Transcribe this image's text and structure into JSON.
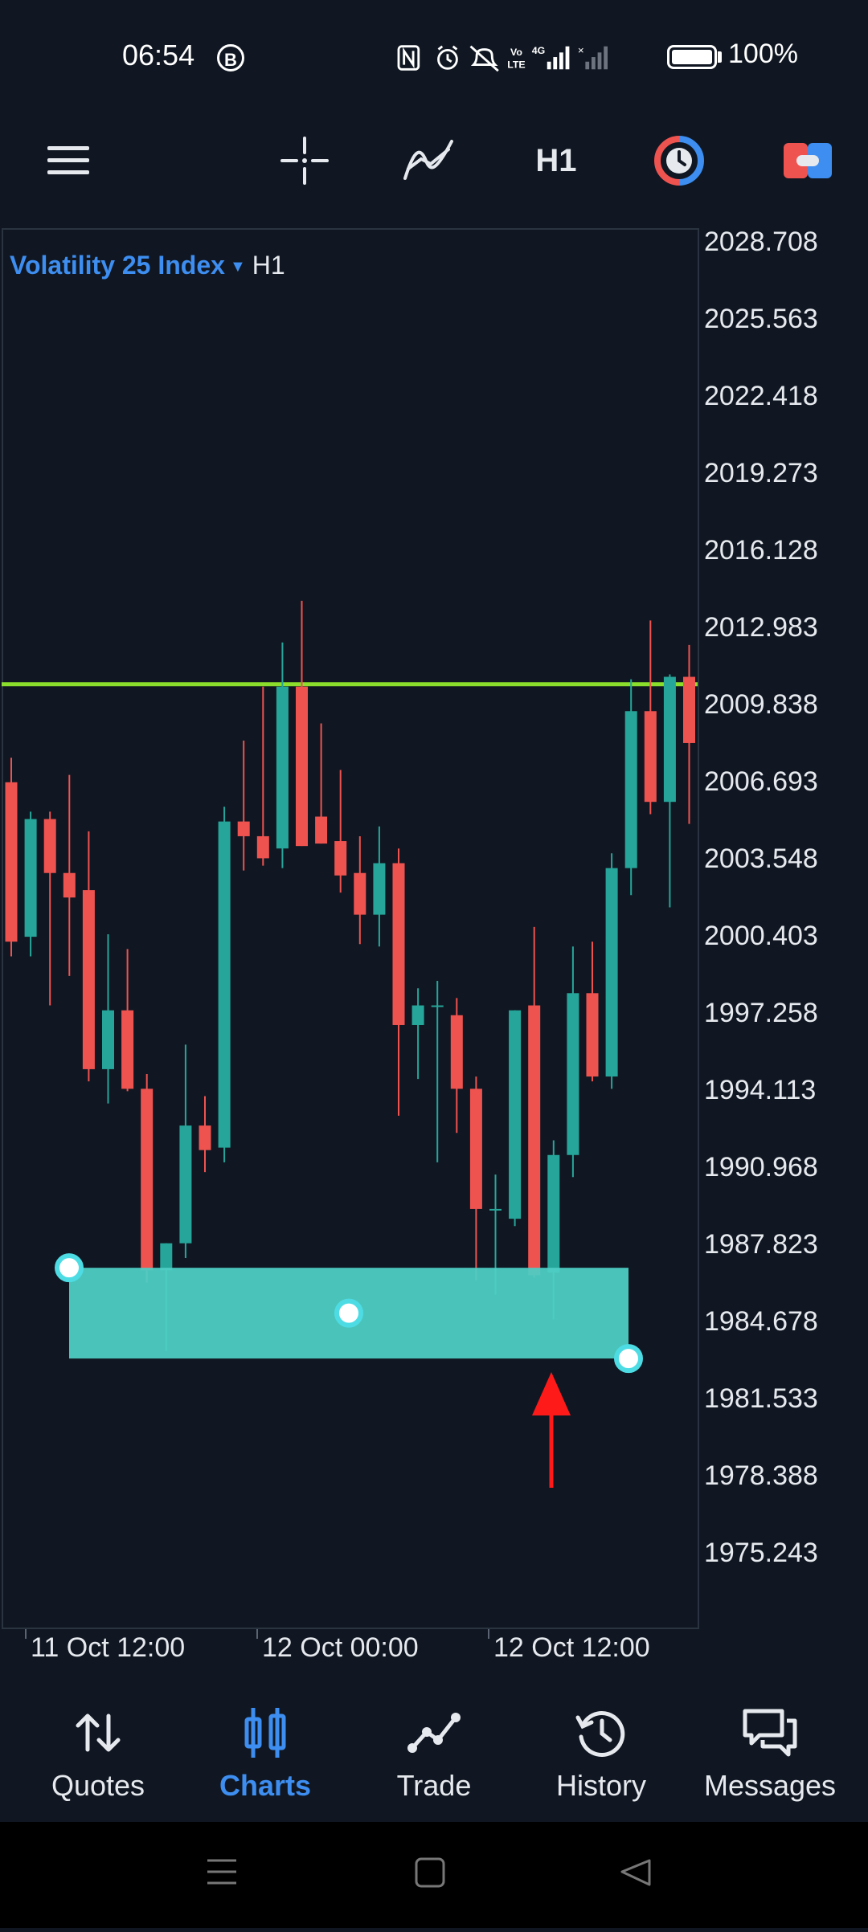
{
  "status_bar": {
    "time": "06:54",
    "b_icon": "B",
    "battery_pct": "100%",
    "icons": [
      "nfc-icon",
      "alarm-icon",
      "mute-icon",
      "volte-icon",
      "4g-signal-icon",
      "signal-icon",
      "battery-icon"
    ]
  },
  "toolbar": {
    "timeframe": "H1",
    "icons": [
      "menu-icon",
      "crosshair-icon",
      "indicators-icon",
      "timeframe-button",
      "one-click-trade-icon",
      "trade-panel-icon"
    ]
  },
  "chart": {
    "symbol": "Volatility 25 Index",
    "timeframe": "H1",
    "price_labels": [
      "2028.708",
      "2025.563",
      "2022.418",
      "2019.273",
      "2016.128",
      "2012.983",
      "2009.838",
      "2006.693",
      "2003.548",
      "2000.403",
      "1997.258",
      "1994.113",
      "1990.968",
      "1987.823",
      "1984.678",
      "1981.533",
      "1978.388",
      "1975.243"
    ],
    "time_labels": [
      "11 Oct 12:00",
      "12 Oct 00:00",
      "12 Oct 12:00"
    ],
    "colors": {
      "bull": "#26a69a",
      "bear": "#ef5350",
      "level_line": "#8bde2b",
      "zone": "#4ecdc4",
      "arrow": "#ff1a1a",
      "bg": "#101722",
      "accent": "#3d8ef0"
    }
  },
  "chart_data": {
    "type": "candlestick",
    "symbol": "Volatility 25 Index",
    "timeframe": "H1",
    "horizontal_line": 2010.7,
    "zone": {
      "top": 1986.9,
      "bottom": 1983.2
    },
    "candles": [
      {
        "o": 2006.7,
        "h": 2007.7,
        "l": 1999.6,
        "c": 2000.2
      },
      {
        "o": 2000.4,
        "h": 2005.5,
        "l": 1999.6,
        "c": 2005.2
      },
      {
        "o": 2005.2,
        "h": 2005.5,
        "l": 1997.6,
        "c": 2003.0
      },
      {
        "o": 2003.0,
        "h": 2007.0,
        "l": 1998.8,
        "c": 2002.0
      },
      {
        "o": 2002.3,
        "h": 2004.7,
        "l": 1994.5,
        "c": 1995.0
      },
      {
        "o": 1995.0,
        "h": 2000.5,
        "l": 1993.6,
        "c": 1997.4
      },
      {
        "o": 1997.4,
        "h": 1999.9,
        "l": 1994.1,
        "c": 1994.2
      },
      {
        "o": 1994.2,
        "h": 1994.8,
        "l": 1986.3,
        "c": 1986.8
      },
      {
        "o": 1986.8,
        "h": 1987.9,
        "l": 1983.5,
        "c": 1987.9
      },
      {
        "o": 1987.9,
        "h": 1996.0,
        "l": 1987.3,
        "c": 1992.7
      },
      {
        "o": 1992.7,
        "h": 1993.9,
        "l": 1990.8,
        "c": 1991.7
      },
      {
        "o": 1991.8,
        "h": 2005.7,
        "l": 1991.2,
        "c": 2005.1
      },
      {
        "o": 2005.1,
        "h": 2008.4,
        "l": 2003.1,
        "c": 2004.5
      },
      {
        "o": 2004.5,
        "h": 2010.6,
        "l": 2003.3,
        "c": 2003.6
      },
      {
        "o": 2004.0,
        "h": 2012.4,
        "l": 2003.2,
        "c": 2010.6
      },
      {
        "o": 2010.6,
        "h": 2014.1,
        "l": 2004.1,
        "c": 2004.1
      },
      {
        "o": 2005.3,
        "h": 2009.1,
        "l": 2004.2,
        "c": 2004.2
      },
      {
        "o": 2004.3,
        "h": 2007.2,
        "l": 2002.2,
        "c": 2002.9
      },
      {
        "o": 2003.0,
        "h": 2004.5,
        "l": 2000.1,
        "c": 2001.3
      },
      {
        "o": 2001.3,
        "h": 2004.9,
        "l": 2000.0,
        "c": 2003.4
      },
      {
        "o": 2003.4,
        "h": 2004.0,
        "l": 1993.1,
        "c": 1996.8
      },
      {
        "o": 1996.8,
        "h": 1998.3,
        "l": 1994.6,
        "c": 1997.6
      },
      {
        "o": 1997.6,
        "h": 1998.6,
        "l": 1991.2,
        "c": 1997.6
      },
      {
        "o": 1997.2,
        "h": 1997.9,
        "l": 1992.4,
        "c": 1994.2
      },
      {
        "o": 1994.2,
        "h": 1994.7,
        "l": 1986.4,
        "c": 1989.3
      },
      {
        "o": 1989.3,
        "h": 1990.7,
        "l": 1985.8,
        "c": 1989.3
      },
      {
        "o": 1988.9,
        "h": 1997.4,
        "l": 1988.6,
        "c": 1997.4
      },
      {
        "o": 1997.6,
        "h": 2000.8,
        "l": 1986.5,
        "c": 1986.6
      },
      {
        "o": 1986.7,
        "h": 1992.1,
        "l": 1984.8,
        "c": 1991.5
      },
      {
        "o": 1991.5,
        "h": 2000.0,
        "l": 1990.6,
        "c": 1998.1
      },
      {
        "o": 1998.1,
        "h": 2000.2,
        "l": 1994.5,
        "c": 1994.7
      },
      {
        "o": 1994.7,
        "h": 2003.8,
        "l": 1994.2,
        "c": 2003.2
      },
      {
        "o": 2003.2,
        "h": 2010.9,
        "l": 2002.1,
        "c": 2009.6
      },
      {
        "o": 2009.6,
        "h": 2013.3,
        "l": 2005.4,
        "c": 2005.9
      },
      {
        "o": 2005.9,
        "h": 2011.1,
        "l": 2001.6,
        "c": 2011.0
      },
      {
        "o": 2011.0,
        "h": 2012.3,
        "l": 2005.0,
        "c": 2008.3
      }
    ]
  },
  "bottom_nav": {
    "items": [
      {
        "label": "Quotes",
        "icon": "quotes-icon"
      },
      {
        "label": "Charts",
        "icon": "charts-icon",
        "active": true
      },
      {
        "label": "Trade",
        "icon": "trade-icon"
      },
      {
        "label": "History",
        "icon": "history-icon"
      },
      {
        "label": "Messages",
        "icon": "messages-icon"
      }
    ]
  },
  "system_nav": [
    "recents-icon",
    "home-icon",
    "back-icon"
  ]
}
